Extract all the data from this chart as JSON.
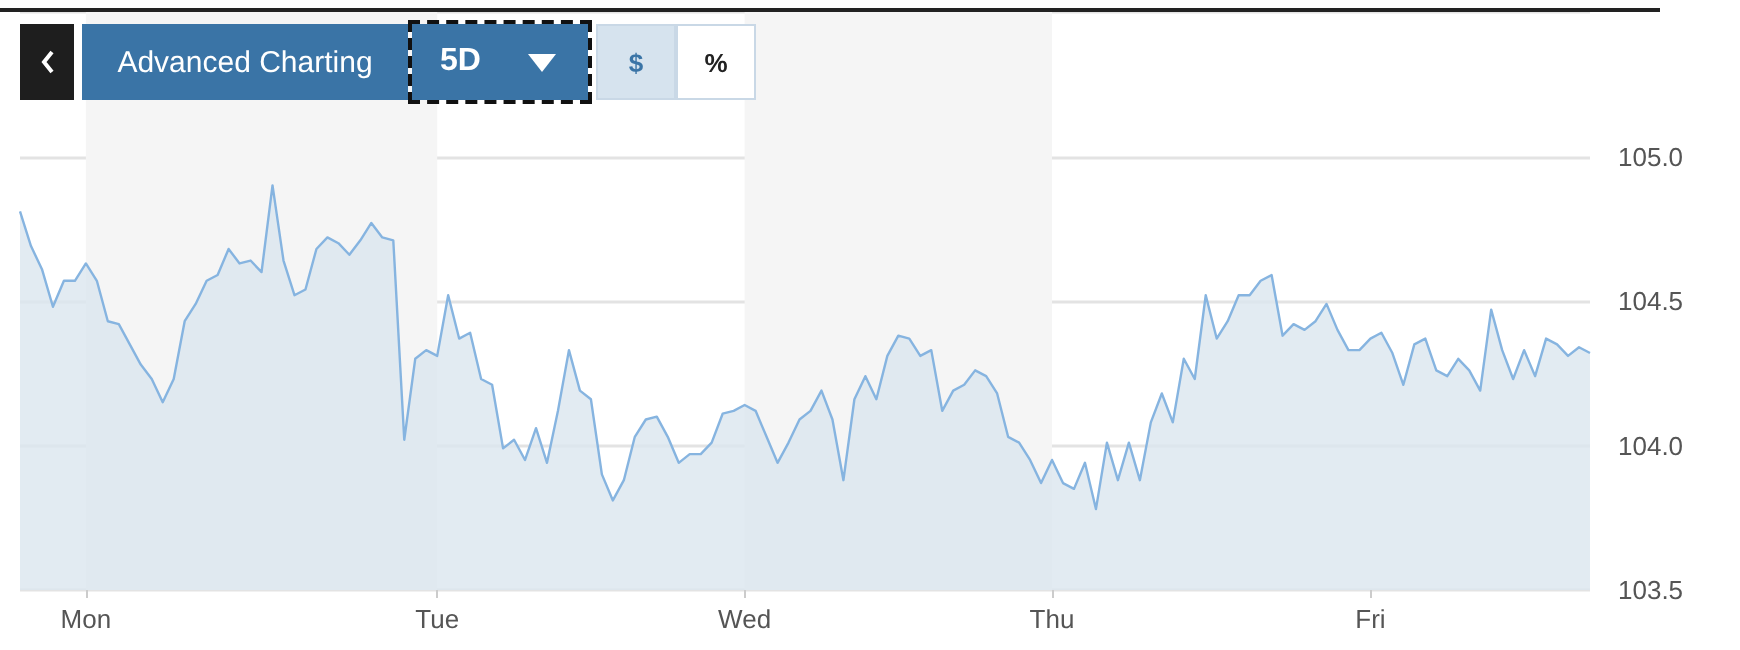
{
  "chart_data": {
    "type": "area",
    "annotations": [
      "Advanced Charting",
      "5D",
      "$",
      "%"
    ],
    "categories": [
      null,
      null,
      null,
      null,
      null,
      null,
      "Mon",
      null,
      null,
      null,
      null,
      null,
      null,
      null,
      null,
      null,
      null,
      null,
      null,
      null,
      null,
      null,
      null,
      null,
      null,
      null,
      null,
      null,
      null,
      null,
      null,
      null,
      null,
      null,
      null,
      null,
      null,
      null,
      "Tue",
      null,
      null,
      null,
      null,
      null,
      null,
      null,
      null,
      null,
      null,
      null,
      null,
      null,
      null,
      null,
      null,
      null,
      null,
      null,
      null,
      null,
      null,
      null,
      null,
      null,
      null,
      null,
      "Wed",
      null,
      null,
      null,
      null,
      null,
      null,
      null,
      null,
      null,
      null,
      null,
      null,
      null,
      null,
      null,
      null,
      null,
      null,
      null,
      null,
      null,
      null,
      null,
      null,
      null,
      null,
      null,
      "Thu",
      null,
      null,
      null,
      null,
      null,
      null,
      null,
      null,
      null,
      null,
      null,
      null,
      null,
      null,
      null,
      null,
      null,
      null,
      null,
      null,
      null,
      null,
      null,
      null,
      null,
      null,
      null,
      null,
      "Fri",
      null,
      null,
      null,
      null,
      null,
      null,
      null,
      null,
      null,
      null,
      null,
      null,
      null,
      null,
      null,
      null,
      null,
      null,
      null,
      null
    ],
    "ylim": [
      103.5,
      105.5
    ],
    "yticks": [
      103.5,
      {
        "value": 104,
        "label": "104.0"
      },
      104.5,
      {
        "value": 105,
        "label": "105.0"
      }
    ],
    "grid": "y",
    "bands": [
      {
        "axis": "x",
        "from": "Mon",
        "to": "Tue",
        "color": "#f5f5f5"
      },
      {
        "axis": "x",
        "from": "Wed",
        "to": "Thu",
        "color": "#f5f5f5"
      }
    ],
    "series": [
      {
        "color": "#86b4e0",
        "values": [
          104.81,
          104.69,
          104.61,
          104.48,
          104.57,
          104.57,
          104.63,
          104.57,
          104.43,
          104.42,
          104.35,
          104.28,
          104.23,
          104.15,
          104.23,
          104.43,
          104.49,
          104.57,
          104.59,
          104.68,
          104.63,
          104.64,
          104.6,
          104.9,
          104.64,
          104.52,
          104.54,
          104.68,
          104.72,
          104.7,
          104.66,
          104.71,
          104.77,
          104.72,
          104.71,
          104.02,
          104.3,
          104.33,
          104.31,
          104.52,
          104.37,
          104.39,
          104.23,
          104.21,
          103.99,
          104.02,
          103.95,
          104.06,
          103.94,
          104.12,
          104.33,
          104.19,
          104.16,
          103.9,
          103.81,
          103.88,
          104.03,
          104.09,
          104.1,
          104.03,
          103.94,
          103.97,
          103.97,
          104.01,
          104.11,
          104.12,
          104.14,
          104.12,
          104.03,
          103.94,
          104.01,
          104.09,
          104.12,
          104.19,
          104.09,
          103.88,
          104.16,
          104.24,
          104.16,
          104.31,
          104.38,
          104.37,
          104.31,
          104.33,
          104.12,
          104.19,
          104.21,
          104.26,
          104.24,
          104.18,
          104.03,
          104.01,
          103.95,
          103.87,
          103.95,
          103.87,
          103.85,
          103.94,
          103.78,
          104.01,
          103.88,
          104.01,
          103.88,
          104.08,
          104.18,
          104.08,
          104.3,
          104.23,
          104.52,
          104.37,
          104.43,
          104.52,
          104.52,
          104.57,
          104.59,
          104.38,
          104.42,
          104.4,
          104.43,
          104.49,
          104.4,
          104.33,
          104.33,
          104.37,
          104.39,
          104.32,
          104.21,
          104.35,
          104.37,
          104.26,
          104.24,
          104.3,
          104.26,
          104.19,
          104.47,
          104.33,
          104.23,
          104.33,
          104.24,
          104.37,
          104.35,
          104.31,
          104.34,
          104.32
        ]
      }
    ]
  }
}
